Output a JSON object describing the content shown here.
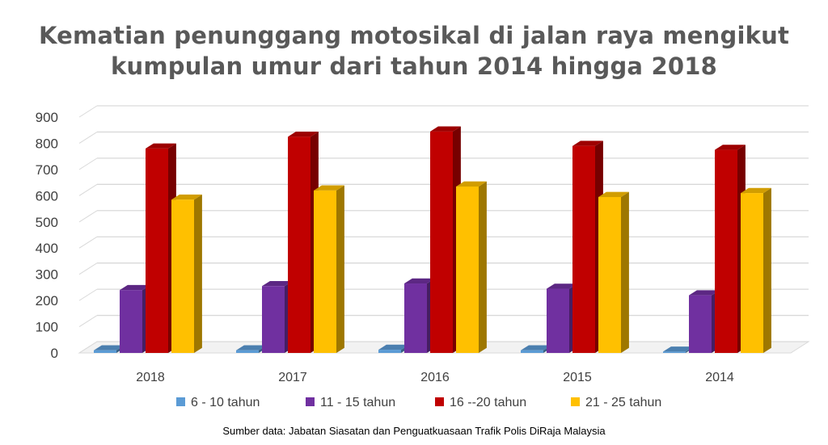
{
  "chart_data": {
    "type": "bar",
    "title_lines": [
      "Kematian penunggang motosikal di jalan raya mengikut",
      "kumpulan umur dari tahun 2014 hingga 2018"
    ],
    "categories": [
      "2018",
      "2017",
      "2016",
      "2015",
      "2014"
    ],
    "series": [
      {
        "name": "6 - 10 tahun",
        "values": [
          10,
          10,
          12,
          10,
          5
        ],
        "color": "#5B9BD5"
      },
      {
        "name": "11 - 15 tahun",
        "values": [
          240,
          255,
          265,
          245,
          220
        ],
        "color": "#7030A0"
      },
      {
        "name": "16 --20 tahun",
        "values": [
          780,
          825,
          845,
          790,
          775
        ],
        "color": "#C00000"
      },
      {
        "name": "21 - 25 tahun",
        "values": [
          585,
          620,
          635,
          595,
          610
        ],
        "color": "#FFC000"
      }
    ],
    "y_ticks": [
      "0",
      "100",
      "200",
      "300",
      "400",
      "500",
      "600",
      "700",
      "800",
      "900"
    ],
    "ylim": [
      0,
      900
    ],
    "grid": true,
    "legend_position": "bottom",
    "source_note": "Sumber data: Jabatan Siasatan dan Penguatkuasaan Trafik Polis DiRaja Malaysia"
  }
}
